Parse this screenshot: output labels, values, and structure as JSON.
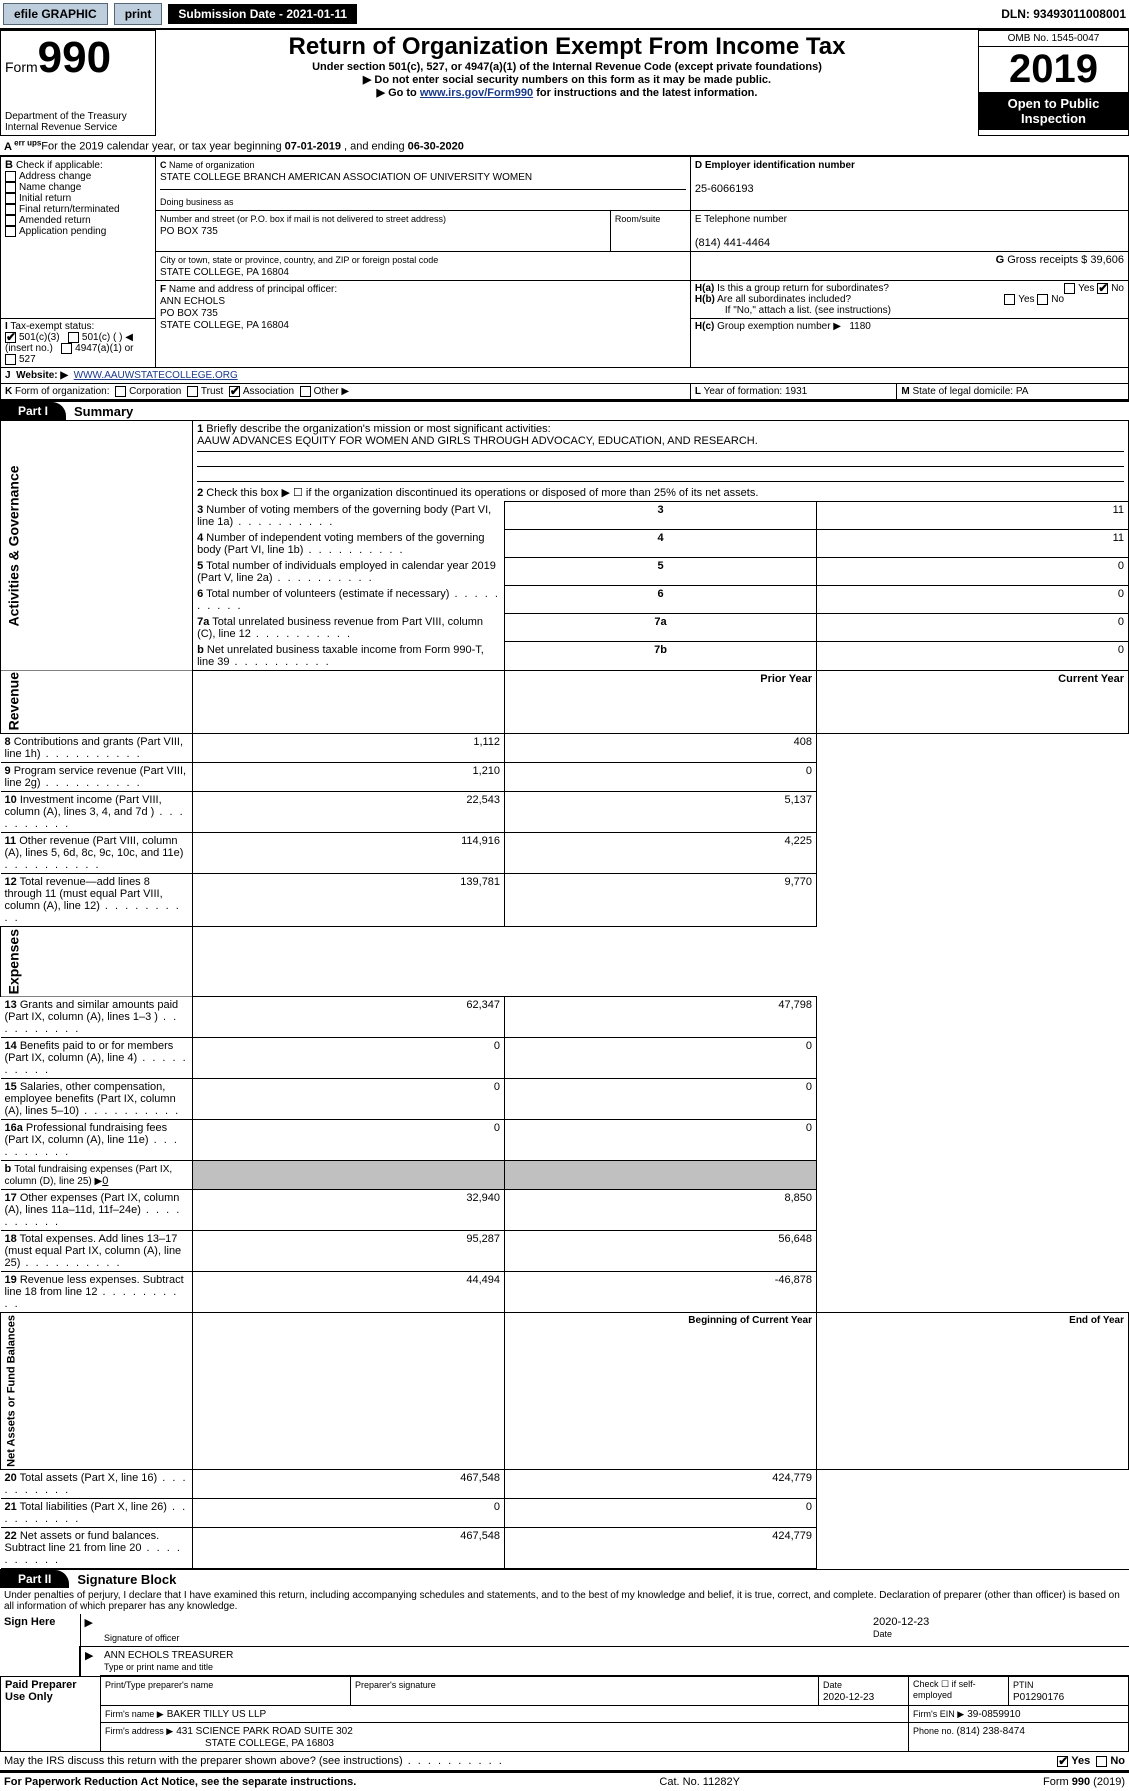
{
  "topbar": {
    "efile": "efile GRAPHIC",
    "print": "print",
    "submission_label": "Submission Date - 2021-01-11",
    "dln": "DLN: 93493011008001"
  },
  "header": {
    "form_word": "Form",
    "form_num": "990",
    "dept": "Department of the Treasury",
    "irs": "Internal Revenue Service",
    "title": "Return of Organization Exempt From Income Tax",
    "sub1": "Under section 501(c), 527, or 4947(a)(1) of the Internal Revenue Code (except private foundations)",
    "sub2": "Do not enter social security numbers on this form as it may be made public.",
    "sub3_a": "Go to ",
    "sub3_link": "www.irs.gov/Form990",
    "sub3_b": " for instructions and the latest information.",
    "omb": "OMB No. 1545-0047",
    "year": "2019",
    "open": "Open to Public Inspection"
  },
  "A": {
    "line_a": "For the 2019 calendar year, or tax year beginning ",
    "begin": "07-01-2019",
    "mid": " , and ending ",
    "end": "06-30-2020"
  },
  "B": {
    "label": "B",
    "check": "Check if applicable:",
    "addr": "Address change",
    "name": "Name change",
    "initial": "Initial return",
    "final": "Final return/terminated",
    "amended": "Amended return",
    "pending": "Application pending"
  },
  "C": {
    "label": "C",
    "name_label": "Name of organization",
    "name": "STATE COLLEGE BRANCH AMERICAN ASSOCIATION OF UNIVERSITY WOMEN",
    "dba_label": "Doing business as",
    "street_label": "Number and street (or P.O. box if mail is not delivered to street address)",
    "room_label": "Room/suite",
    "street": "PO BOX 735",
    "city_label": "City or town, state or province, country, and ZIP or foreign postal code",
    "city": "STATE COLLEGE, PA  16804"
  },
  "D": {
    "label": "D Employer identification number",
    "val": "25-6066193"
  },
  "E": {
    "label": "E Telephone number",
    "val": "(814) 441-4464"
  },
  "G": {
    "label": "G",
    "text": "Gross receipts $ ",
    "val": "39,606"
  },
  "F": {
    "label": "F",
    "text": "Name and address of principal officer:",
    "name": "ANN ECHOLS",
    "street": "PO BOX 735",
    "city": "STATE COLLEGE, PA  16804"
  },
  "H": {
    "a_label": "H(a)",
    "a_text": "Is this a group return for subordinates?",
    "b_label": "H(b)",
    "b_text": "Are all subordinates included?",
    "b_note": "If \"No,\" attach a list. (see instructions)",
    "c_label": "H(c)",
    "c_text": "Group exemption number ▶",
    "c_val": "1180",
    "yes": "Yes",
    "no": "No"
  },
  "I": {
    "label": "I",
    "text": "Tax-exempt status:",
    "o1": "501(c)(3)",
    "o2": "501(c) (  ) ◀ (insert no.)",
    "o3": "4947(a)(1) or",
    "o4": "527"
  },
  "J": {
    "label": "J",
    "text": "Website: ▶",
    "val": "WWW.AAUWSTATECOLLEGE.ORG"
  },
  "K": {
    "label": "K",
    "text": "Form of organization:",
    "corp": "Corporation",
    "trust": "Trust",
    "assoc": "Association",
    "other": "Other ▶"
  },
  "L": {
    "label": "L",
    "text": "Year of formation: ",
    "val": "1931"
  },
  "M": {
    "label": "M",
    "text": "State of legal domicile: ",
    "val": "PA"
  },
  "part1": {
    "tab": "Part I",
    "title": "Summary",
    "side_gov": "Activities & Governance",
    "side_rev": "Revenue",
    "side_exp": "Expenses",
    "side_net": "Net Assets or Fund Balances",
    "l1_label": "1",
    "l1_text": "Briefly describe the organization's mission or most significant activities:",
    "l1_val": "AAUW ADVANCES EQUITY FOR WOMEN AND GIRLS THROUGH ADVOCACY, EDUCATION, AND RESEARCH.",
    "l2_label": "2",
    "l2_text": "Check this box ▶ ☐ if the organization discontinued its operations or disposed of more than 25% of its net assets.",
    "rows_gov": [
      {
        "n": "3",
        "t": "Number of voting members of the governing body (Part VI, line 1a)",
        "box": "3",
        "v": "11"
      },
      {
        "n": "4",
        "t": "Number of independent voting members of the governing body (Part VI, line 1b)",
        "box": "4",
        "v": "11"
      },
      {
        "n": "5",
        "t": "Total number of individuals employed in calendar year 2019 (Part V, line 2a)",
        "box": "5",
        "v": "0"
      },
      {
        "n": "6",
        "t": "Total number of volunteers (estimate if necessary)",
        "box": "6",
        "v": "0"
      },
      {
        "n": "7a",
        "t": "Total unrelated business revenue from Part VIII, column (C), line 12",
        "box": "7a",
        "v": "0"
      },
      {
        "n": "b",
        "t": "Net unrelated business taxable income from Form 990-T, line 39",
        "box": "7b",
        "v": "0"
      }
    ],
    "col_prior": "Prior Year",
    "col_current": "Current Year",
    "rows_rev": [
      {
        "n": "8",
        "t": "Contributions and grants (Part VIII, line 1h)",
        "p": "1,112",
        "c": "408"
      },
      {
        "n": "9",
        "t": "Program service revenue (Part VIII, line 2g)",
        "p": "1,210",
        "c": "0"
      },
      {
        "n": "10",
        "t": "Investment income (Part VIII, column (A), lines 3, 4, and 7d )",
        "p": "22,543",
        "c": "5,137"
      },
      {
        "n": "11",
        "t": "Other revenue (Part VIII, column (A), lines 5, 6d, 8c, 9c, 10c, and 11e)",
        "p": "114,916",
        "c": "4,225"
      },
      {
        "n": "12",
        "t": "Total revenue—add lines 8 through 11 (must equal Part VIII, column (A), line 12)",
        "p": "139,781",
        "c": "9,770"
      }
    ],
    "rows_exp": [
      {
        "n": "13",
        "t": "Grants and similar amounts paid (Part IX, column (A), lines 1–3 )",
        "p": "62,347",
        "c": "47,798"
      },
      {
        "n": "14",
        "t": "Benefits paid to or for members (Part IX, column (A), line 4)",
        "p": "0",
        "c": "0"
      },
      {
        "n": "15",
        "t": "Salaries, other compensation, employee benefits (Part IX, column (A), lines 5–10)",
        "p": "0",
        "c": "0"
      },
      {
        "n": "16a",
        "t": "Professional fundraising fees (Part IX, column (A), line 11e)",
        "p": "0",
        "c": "0"
      }
    ],
    "row_16b": {
      "n": "b",
      "t": "Total fundraising expenses (Part IX, column (D), line 25) ▶",
      "v": "0"
    },
    "rows_exp2": [
      {
        "n": "17",
        "t": "Other expenses (Part IX, column (A), lines 11a–11d, 11f–24e)",
        "p": "32,940",
        "c": "8,850"
      },
      {
        "n": "18",
        "t": "Total expenses. Add lines 13–17 (must equal Part IX, column (A), line 25)",
        "p": "95,287",
        "c": "56,648"
      },
      {
        "n": "19",
        "t": "Revenue less expenses. Subtract line 18 from line 12",
        "p": "44,494",
        "c": "-46,878"
      }
    ],
    "col_begin": "Beginning of Current Year",
    "col_end": "End of Year",
    "rows_net": [
      {
        "n": "20",
        "t": "Total assets (Part X, line 16)",
        "p": "467,548",
        "c": "424,779"
      },
      {
        "n": "21",
        "t": "Total liabilities (Part X, line 26)",
        "p": "0",
        "c": "0"
      },
      {
        "n": "22",
        "t": "Net assets or fund balances. Subtract line 21 from line 20",
        "p": "467,548",
        "c": "424,779"
      }
    ]
  },
  "part2": {
    "tab": "Part II",
    "title": "Signature Block",
    "decl": "Under penalties of perjury, I declare that I have examined this return, including accompanying schedules and statements, and to the best of my knowledge and belief, it is true, correct, and complete. Declaration of preparer (other than officer) is based on all information of which preparer has any knowledge.",
    "sign_here": "Sign Here",
    "sig_officer": "Signature of officer",
    "sig_date": "2020-12-23",
    "date_label": "Date",
    "name_title": "ANN ECHOLS TREASURER",
    "name_label": "Type or print name and title",
    "paid": "Paid Preparer Use Only",
    "pp_name_label": "Print/Type preparer's name",
    "pp_sig_label": "Preparer's signature",
    "pp_date_label": "Date",
    "pp_date": "2020-12-23",
    "pp_check": "Check ☐ if self-employed",
    "pp_ptin_label": "PTIN",
    "pp_ptin": "P01290176",
    "firm_name_label": "Firm's name    ▶",
    "firm_name": "BAKER TILLY US LLP",
    "firm_ein_label": "Firm's EIN ▶",
    "firm_ein": "39-0859910",
    "firm_addr_label": "Firm's address ▶",
    "firm_addr1": "431 SCIENCE PARK ROAD SUITE 302",
    "firm_addr2": "STATE COLLEGE, PA  16803",
    "firm_phone_label": "Phone no. ",
    "firm_phone": "(814) 238-8474",
    "may_discuss": "May the IRS discuss this return with the preparer shown above? (see instructions)"
  },
  "footer": {
    "pra": "For Paperwork Reduction Act Notice, see the separate instructions.",
    "cat": "Cat. No. 11282Y",
    "form": "Form ",
    "form_no": "990",
    "form_yr": " (2019)"
  }
}
